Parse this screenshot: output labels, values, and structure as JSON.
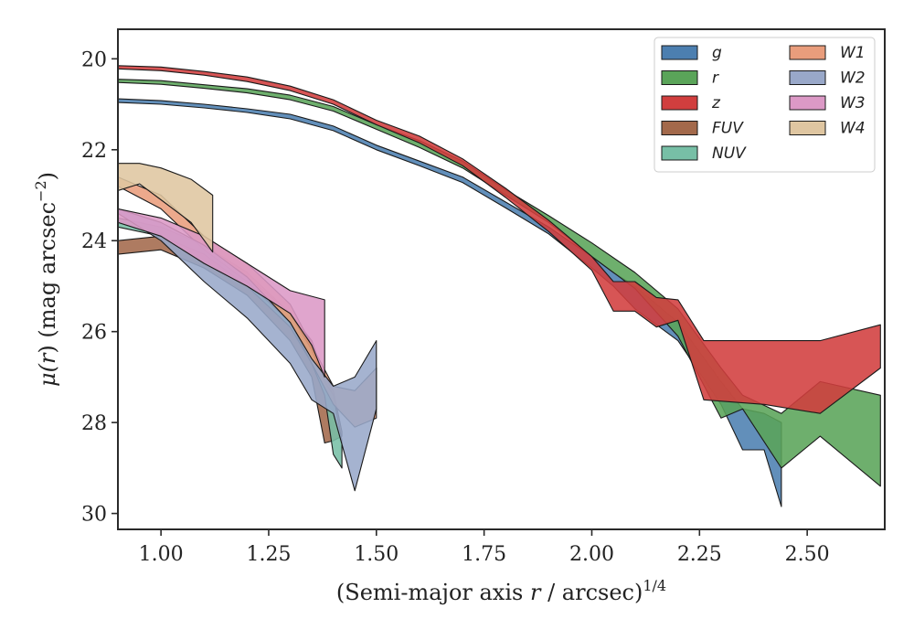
{
  "chart_data": {
    "type": "area",
    "xlabel": "(Semi-major axis r / arcsec)^{1/4}",
    "xlabel_parts": {
      "pre": "(Semi-major axis ",
      "var": "r",
      "post": " / arcsec)",
      "sup": "1/4"
    },
    "ylabel": "μ(r) (mag arcsec^{-2})",
    "ylabel_parts": {
      "mu": "μ(",
      "var": "r",
      "mid": ") (mag arcsec",
      "sup": "−2",
      "end": ")"
    },
    "xlim": [
      0.9,
      2.68
    ],
    "ylim": [
      30.35,
      19.35
    ],
    "y_inverted": true,
    "xticks": [
      "1.00",
      "1.25",
      "1.50",
      "1.75",
      "2.00",
      "2.25",
      "2.50"
    ],
    "xtick_values": [
      1.0,
      1.25,
      1.5,
      1.75,
      2.0,
      2.25,
      2.5
    ],
    "yticks": [
      "20",
      "22",
      "24",
      "26",
      "28",
      "30"
    ],
    "ytick_values": [
      20,
      22,
      24,
      26,
      28,
      30
    ],
    "legend_position": "top-right",
    "legend_columns": 2,
    "series": [
      {
        "name": "g",
        "color": "#4c7fb0",
        "upper": [
          [
            0.9,
            20.88
          ],
          [
            1.0,
            20.92
          ],
          [
            1.1,
            21.0
          ],
          [
            1.2,
            21.1
          ],
          [
            1.3,
            21.22
          ],
          [
            1.4,
            21.48
          ],
          [
            1.5,
            21.9
          ],
          [
            1.6,
            22.25
          ],
          [
            1.7,
            22.6
          ],
          [
            1.8,
            23.15
          ],
          [
            1.9,
            23.7
          ],
          [
            2.0,
            24.35
          ],
          [
            2.05,
            24.7
          ],
          [
            2.1,
            25.0
          ],
          [
            2.2,
            25.8
          ],
          [
            2.3,
            27.1
          ],
          [
            2.35,
            27.7
          ],
          [
            2.4,
            27.8
          ],
          [
            2.44,
            28.0
          ]
        ],
        "lower": [
          [
            0.9,
            20.96
          ],
          [
            1.0,
            21.0
          ],
          [
            1.1,
            21.08
          ],
          [
            1.2,
            21.18
          ],
          [
            1.3,
            21.32
          ],
          [
            1.4,
            21.58
          ],
          [
            1.5,
            22.0
          ],
          [
            1.6,
            22.35
          ],
          [
            1.7,
            22.72
          ],
          [
            1.8,
            23.28
          ],
          [
            1.9,
            23.85
          ],
          [
            2.0,
            24.6
          ],
          [
            2.05,
            25.0
          ],
          [
            2.1,
            25.5
          ],
          [
            2.2,
            26.2
          ],
          [
            2.3,
            27.6
          ],
          [
            2.35,
            28.6
          ],
          [
            2.4,
            28.6
          ],
          [
            2.44,
            29.85
          ]
        ]
      },
      {
        "name": "r",
        "color": "#5aa459",
        "upper": [
          [
            0.9,
            20.45
          ],
          [
            1.0,
            20.48
          ],
          [
            1.1,
            20.57
          ],
          [
            1.2,
            20.66
          ],
          [
            1.3,
            20.8
          ],
          [
            1.4,
            21.05
          ],
          [
            1.5,
            21.45
          ],
          [
            1.6,
            21.8
          ],
          [
            1.7,
            22.25
          ],
          [
            1.8,
            22.88
          ],
          [
            1.9,
            23.45
          ],
          [
            2.0,
            24.05
          ],
          [
            2.1,
            24.7
          ],
          [
            2.2,
            25.5
          ],
          [
            2.3,
            26.8
          ],
          [
            2.35,
            27.4
          ],
          [
            2.44,
            27.8
          ],
          [
            2.53,
            27.1
          ],
          [
            2.67,
            27.4
          ]
        ],
        "lower": [
          [
            0.9,
            20.52
          ],
          [
            1.0,
            20.56
          ],
          [
            1.1,
            20.65
          ],
          [
            1.2,
            20.75
          ],
          [
            1.3,
            20.9
          ],
          [
            1.4,
            21.15
          ],
          [
            1.5,
            21.55
          ],
          [
            1.6,
            21.95
          ],
          [
            1.7,
            22.4
          ],
          [
            1.8,
            23.0
          ],
          [
            1.9,
            23.6
          ],
          [
            2.0,
            24.35
          ],
          [
            2.1,
            25.05
          ],
          [
            2.2,
            26.1
          ],
          [
            2.3,
            27.9
          ],
          [
            2.35,
            27.7
          ],
          [
            2.44,
            29.0
          ],
          [
            2.53,
            28.3
          ],
          [
            2.67,
            29.4
          ]
        ]
      },
      {
        "name": "z",
        "color": "#d13e3e",
        "upper": [
          [
            0.9,
            20.15
          ],
          [
            1.0,
            20.18
          ],
          [
            1.1,
            20.28
          ],
          [
            1.2,
            20.4
          ],
          [
            1.3,
            20.6
          ],
          [
            1.4,
            20.9
          ],
          [
            1.5,
            21.35
          ],
          [
            1.6,
            21.7
          ],
          [
            1.7,
            22.2
          ],
          [
            1.8,
            22.85
          ],
          [
            1.9,
            23.55
          ],
          [
            2.0,
            24.35
          ],
          [
            2.05,
            24.9
          ],
          [
            2.1,
            24.9
          ],
          [
            2.15,
            25.25
          ],
          [
            2.2,
            25.3
          ],
          [
            2.26,
            26.2
          ],
          [
            2.4,
            26.2
          ],
          [
            2.53,
            26.2
          ],
          [
            2.67,
            25.85
          ]
        ],
        "lower": [
          [
            0.9,
            20.22
          ],
          [
            1.0,
            20.26
          ],
          [
            1.1,
            20.36
          ],
          [
            1.2,
            20.5
          ],
          [
            1.3,
            20.7
          ],
          [
            1.4,
            21.0
          ],
          [
            1.5,
            21.45
          ],
          [
            1.6,
            21.85
          ],
          [
            1.7,
            22.35
          ],
          [
            1.8,
            23.05
          ],
          [
            1.9,
            23.8
          ],
          [
            2.0,
            24.65
          ],
          [
            2.05,
            25.55
          ],
          [
            2.1,
            25.55
          ],
          [
            2.15,
            25.9
          ],
          [
            2.2,
            25.75
          ],
          [
            2.26,
            27.5
          ],
          [
            2.4,
            27.6
          ],
          [
            2.53,
            27.8
          ],
          [
            2.67,
            26.8
          ]
        ]
      },
      {
        "name": "FUV",
        "color": "#a3694b",
        "upper": [
          [
            0.9,
            24.0
          ],
          [
            1.0,
            23.9
          ],
          [
            1.1,
            24.1
          ],
          [
            1.2,
            24.7
          ],
          [
            1.3,
            25.6
          ],
          [
            1.35,
            26.2
          ],
          [
            1.38,
            27.0
          ],
          [
            1.4,
            27.3
          ],
          [
            1.42,
            28.2
          ]
        ],
        "lower": [
          [
            0.9,
            24.3
          ],
          [
            1.0,
            24.2
          ],
          [
            1.1,
            24.6
          ],
          [
            1.2,
            25.2
          ],
          [
            1.3,
            26.2
          ],
          [
            1.35,
            27.0
          ],
          [
            1.38,
            28.45
          ],
          [
            1.4,
            28.4
          ],
          [
            1.42,
            28.3
          ]
        ]
      },
      {
        "name": "NUV",
        "color": "#77bfa6",
        "upper": [
          [
            0.9,
            23.5
          ],
          [
            1.0,
            23.7
          ],
          [
            1.1,
            24.1
          ],
          [
            1.2,
            24.8
          ],
          [
            1.3,
            25.6
          ],
          [
            1.35,
            26.4
          ],
          [
            1.38,
            27.1
          ],
          [
            1.4,
            27.4
          ],
          [
            1.42,
            28.4
          ]
        ],
        "lower": [
          [
            0.9,
            23.7
          ],
          [
            1.0,
            23.9
          ],
          [
            1.1,
            24.3
          ],
          [
            1.2,
            25.0
          ],
          [
            1.3,
            25.9
          ],
          [
            1.35,
            26.7
          ],
          [
            1.38,
            27.4
          ],
          [
            1.4,
            28.7
          ],
          [
            1.42,
            29.0
          ]
        ]
      },
      {
        "name": "W1",
        "color": "#e99d7c",
        "upper": [
          [
            0.9,
            22.6
          ],
          [
            1.0,
            23.0
          ],
          [
            1.1,
            23.9
          ],
          [
            1.2,
            24.5
          ],
          [
            1.3,
            25.4
          ],
          [
            1.4,
            27.2
          ],
          [
            1.45,
            27.3
          ],
          [
            1.5,
            26.8
          ]
        ],
        "lower": [
          [
            0.9,
            22.8
          ],
          [
            1.0,
            23.3
          ],
          [
            1.1,
            24.2
          ],
          [
            1.2,
            24.9
          ],
          [
            1.3,
            25.8
          ],
          [
            1.4,
            27.6
          ],
          [
            1.45,
            28.1
          ],
          [
            1.5,
            27.9
          ]
        ]
      },
      {
        "name": "W2",
        "color": "#99a8c9",
        "upper": [
          [
            0.9,
            23.3
          ],
          [
            1.0,
            23.6
          ],
          [
            1.1,
            24.1
          ],
          [
            1.2,
            24.8
          ],
          [
            1.3,
            25.8
          ],
          [
            1.35,
            26.6
          ],
          [
            1.4,
            27.2
          ],
          [
            1.45,
            27.0
          ],
          [
            1.5,
            26.2
          ]
        ],
        "lower": [
          [
            0.9,
            23.4
          ],
          [
            1.0,
            24.0
          ],
          [
            1.1,
            24.9
          ],
          [
            1.2,
            25.7
          ],
          [
            1.3,
            26.7
          ],
          [
            1.35,
            27.5
          ],
          [
            1.4,
            27.8
          ],
          [
            1.45,
            29.5
          ],
          [
            1.5,
            27.7
          ]
        ]
      },
      {
        "name": "W3",
        "color": "#dc99c6",
        "upper": [
          [
            0.9,
            23.3
          ],
          [
            1.0,
            23.5
          ],
          [
            1.1,
            23.9
          ],
          [
            1.2,
            24.5
          ],
          [
            1.3,
            25.1
          ],
          [
            1.38,
            25.3
          ]
        ],
        "lower": [
          [
            0.9,
            23.6
          ],
          [
            1.0,
            23.9
          ],
          [
            1.1,
            24.5
          ],
          [
            1.2,
            25.0
          ],
          [
            1.3,
            25.6
          ],
          [
            1.35,
            26.3
          ],
          [
            1.38,
            27.0
          ]
        ]
      },
      {
        "name": "W4",
        "color": "#dfc6a1",
        "upper": [
          [
            0.9,
            22.3
          ],
          [
            0.95,
            22.3
          ],
          [
            1.0,
            22.4
          ],
          [
            1.07,
            22.65
          ],
          [
            1.12,
            23.0
          ]
        ],
        "lower": [
          [
            0.9,
            22.9
          ],
          [
            0.95,
            22.75
          ],
          [
            1.0,
            23.1
          ],
          [
            1.07,
            23.6
          ],
          [
            1.12,
            24.25
          ]
        ]
      }
    ]
  }
}
